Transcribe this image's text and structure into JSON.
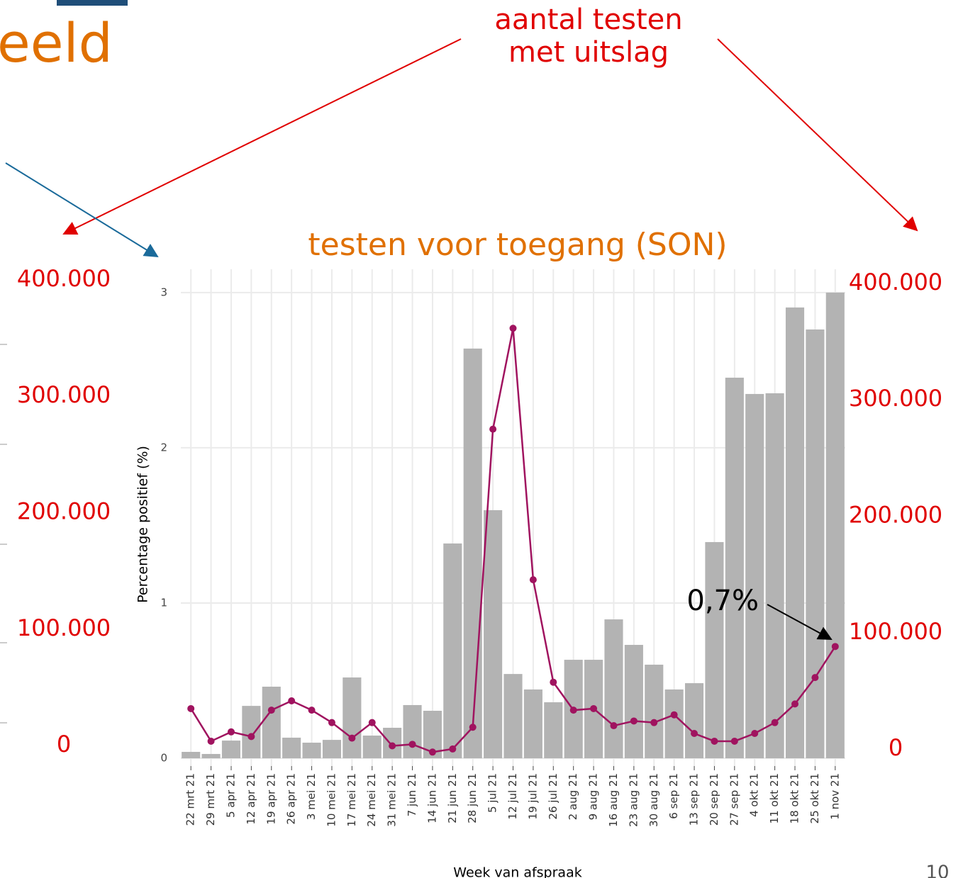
{
  "header": {
    "title": "eeld"
  },
  "callout": {
    "line1": "aantal testen",
    "line2": "met uitslag"
  },
  "chart_data": {
    "type": "bar-line",
    "title": "testen voor toegang (SON)",
    "y_label": "Percentage positief (%)",
    "x_label": "Week van afspraak",
    "categories": [
      "22 mrt 21",
      "29 mrt 21",
      "5 apr 21",
      "12 apr 21",
      "19 apr 21",
      "26 apr 21",
      "3 mei 21",
      "10 mei 21",
      "17 mei 21",
      "24 mei 21",
      "31 mei 21",
      "7 jun 21",
      "14 jun 21",
      "21 jun 21",
      "28 jun 21",
      "5 jul 21",
      "12 jul 21",
      "19 jul 21",
      "26 jul 21",
      "2 aug 21",
      "9 aug 21",
      "16 aug 21",
      "23 aug 21",
      "30 aug 21",
      "6 sep 21",
      "13 sep 21",
      "20 sep 21",
      "27 sep 21",
      "4 okt 21",
      "11 okt 21",
      "18 okt 21",
      "25 okt 21",
      "1 nov 21"
    ],
    "series": [
      {
        "type": "bar",
        "axis": "y2",
        "color": "#b3b3b3",
        "values": [
          5500,
          3700,
          15200,
          45000,
          61500,
          17700,
          13400,
          15800,
          69400,
          19500,
          26200,
          45700,
          40800,
          184500,
          351900,
          213100,
          72400,
          59100,
          48100,
          84600,
          84600,
          119300,
          97400,
          80400,
          59100,
          64500,
          185700,
          326900,
          312900,
          313500,
          387200,
          368300,
          400000
        ]
      },
      {
        "type": "line",
        "color": "#a0135f",
        "values": [
          0.32,
          0.11,
          0.17,
          0.14,
          0.31,
          0.37,
          0.31,
          0.23,
          0.13,
          0.23,
          0.08,
          0.09,
          0.04,
          0.06,
          0.2,
          2.12,
          2.77,
          1.15,
          0.49,
          0.31,
          0.32,
          0.21,
          0.24,
          0.23,
          0.28,
          0.16,
          0.11,
          0.11,
          0.16,
          0.23,
          0.35,
          0.52,
          0.72
        ]
      }
    ],
    "ylim": [
      -0.05,
      3.15
    ],
    "yticks": [
      0,
      1,
      2,
      3
    ],
    "y2lim": [
      0,
      400000
    ],
    "y2ticks": [
      {
        "value": 0,
        "label": "0"
      },
      {
        "value": 100000,
        "label": "100.000"
      },
      {
        "value": 200000,
        "label": "200.000"
      },
      {
        "value": 300000,
        "label": "300.000"
      },
      {
        "value": 400000,
        "label": "400.000"
      }
    ],
    "annotation": "0,7%",
    "grid": true
  },
  "footer": {
    "page": "10"
  }
}
